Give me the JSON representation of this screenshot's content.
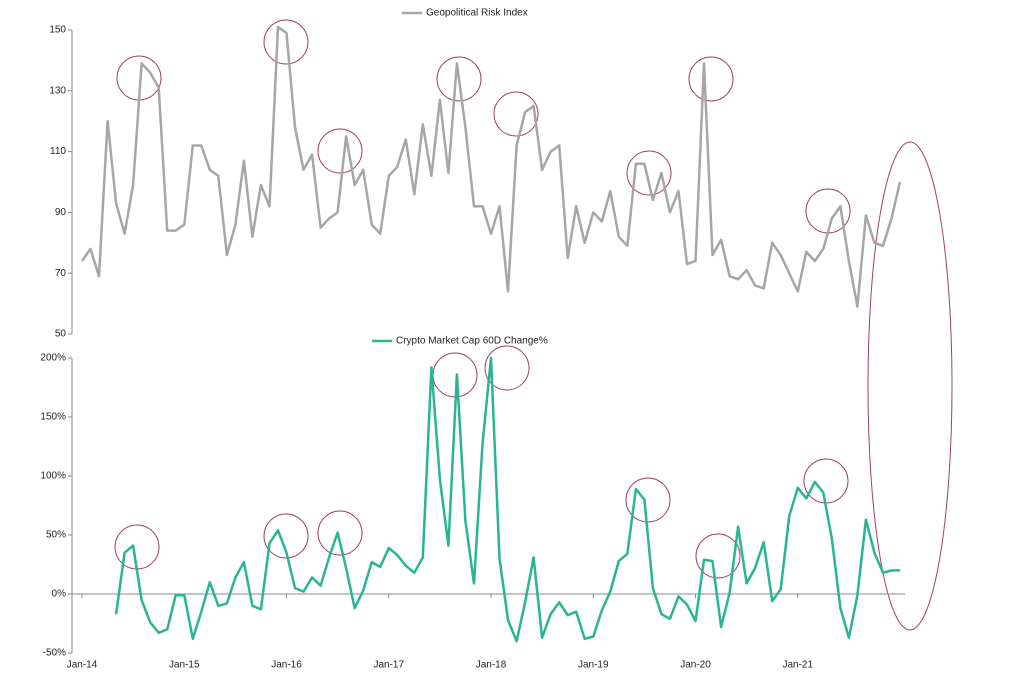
{
  "chart_data": [
    {
      "type": "line",
      "series": [
        {
          "name": "Geopolitical Risk Index",
          "color": "#a6a6a6",
          "values": [
            74,
            78,
            69,
            120,
            93,
            83,
            99,
            139,
            136,
            131,
            84,
            84,
            86,
            112,
            112,
            104,
            102,
            76,
            86,
            107,
            82,
            99,
            92,
            151,
            149,
            118,
            104,
            109,
            85,
            88,
            90,
            115,
            99,
            104,
            86,
            83,
            102,
            105,
            114,
            96,
            119,
            102,
            127,
            103,
            139,
            118,
            92,
            92,
            83,
            92,
            64,
            112,
            123,
            125,
            104,
            110,
            112,
            75,
            92,
            80,
            90,
            87,
            97,
            82,
            79,
            106,
            106,
            94,
            103,
            90,
            97,
            73,
            74,
            139,
            76,
            81,
            69,
            68,
            71,
            66,
            65,
            80,
            76,
            70,
            64,
            77,
            74,
            78,
            88,
            92,
            74,
            59,
            89,
            80,
            79,
            88,
            100
          ]
        }
      ],
      "ylim": [
        50,
        150
      ],
      "yticks": [
        50,
        70,
        90,
        110,
        130,
        150
      ]
    },
    {
      "type": "line",
      "categories": [
        "Jan-14",
        null,
        null,
        null,
        null,
        null,
        null,
        null,
        null,
        null,
        null,
        null,
        "Jan-15",
        null,
        null,
        null,
        null,
        null,
        null,
        null,
        null,
        null,
        null,
        null,
        "Jan-16",
        null,
        null,
        null,
        null,
        null,
        null,
        null,
        null,
        null,
        null,
        null,
        "Jan-17",
        null,
        null,
        null,
        null,
        null,
        null,
        null,
        null,
        null,
        null,
        null,
        "Jan-18",
        null,
        null,
        null,
        null,
        null,
        null,
        null,
        null,
        null,
        null,
        null,
        "Jan-19",
        null,
        null,
        null,
        null,
        null,
        null,
        null,
        null,
        null,
        null,
        null,
        "Jan-20",
        null,
        null,
        null,
        null,
        null,
        null,
        null,
        null,
        null,
        null,
        null,
        "Jan-21",
        null,
        null,
        null,
        null,
        null,
        null,
        null,
        null,
        null,
        null,
        null,
        null
      ],
      "series": [
        {
          "name": "Crypto Market Cap 60D Change%",
          "color": "#2ab592",
          "values": [
            null,
            null,
            null,
            null,
            -17,
            35,
            41,
            -5,
            -24,
            -33,
            -30,
            -1,
            -1,
            -38,
            -15,
            10,
            -10,
            -8,
            14,
            27,
            -10,
            -13,
            43,
            54,
            35,
            5,
            2,
            14,
            7,
            31,
            52,
            22,
            -12,
            3,
            27,
            23,
            39,
            33,
            24,
            18,
            31,
            192,
            97,
            41,
            186,
            62,
            9,
            127,
            200,
            30,
            -22,
            -40,
            -7,
            31,
            -37,
            -17,
            -7,
            -18,
            -15,
            -38,
            -36,
            -14,
            2,
            28,
            34,
            89,
            80,
            5,
            -17,
            -21,
            -2,
            -9,
            -23,
            29,
            28,
            -28,
            1,
            57,
            9,
            22,
            44,
            -6,
            4,
            66,
            90,
            81,
            95,
            86,
            47,
            -12,
            -37,
            -1,
            63,
            35,
            18,
            20,
            20
          ]
        }
      ],
      "ylim": [
        -50,
        200
      ],
      "yticks": [
        {
          "value": -50,
          "label": "-50%"
        },
        {
          "value": 0,
          "label": "0%"
        },
        {
          "value": 50,
          "label": "50%"
        },
        {
          "value": 100,
          "label": "100%"
        },
        {
          "value": 150,
          "label": "150%"
        },
        {
          "value": 200,
          "label": "200%"
        }
      ]
    }
  ]
}
